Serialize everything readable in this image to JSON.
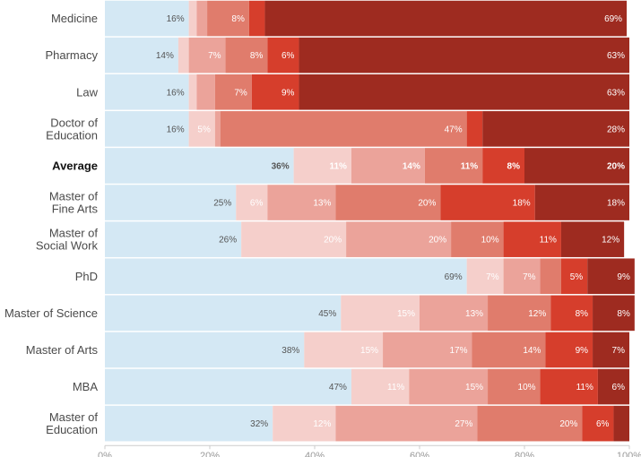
{
  "chart_data": {
    "type": "bar",
    "orientation": "horizontal",
    "stacked": true,
    "title": "",
    "xlabel": "",
    "ylabel": "",
    "xlim": [
      0,
      100
    ],
    "x_ticks": [
      "0%",
      "20%",
      "40%",
      "60%",
      "80%",
      "100%"
    ],
    "grid": false,
    "legend": "none",
    "segment_colors": [
      "#d4e8f4",
      "#f5cfcb",
      "#eba39a",
      "#e07c6c",
      "#d63e2c",
      "#9e2b20"
    ],
    "segment_label_colors": [
      "#555555",
      "#ffffff",
      "#ffffff",
      "#ffffff",
      "#ffffff",
      "#ffffff"
    ],
    "highlight_category": "Average",
    "categories": [
      {
        "label": [
          "Medicine"
        ],
        "values": [
          16,
          1.5,
          2,
          8,
          3,
          69
        ],
        "labels": [
          "16%",
          "",
          "",
          "8%",
          "",
          "69%"
        ]
      },
      {
        "label": [
          "Pharmacy"
        ],
        "values": [
          14,
          2,
          7,
          8,
          6,
          63
        ],
        "labels": [
          "14%",
          "",
          "7%",
          "8%",
          "6%",
          "63%"
        ]
      },
      {
        "label": [
          "Law"
        ],
        "values": [
          16,
          1.5,
          3.5,
          7,
          9,
          63
        ],
        "labels": [
          "16%",
          "",
          "",
          "7%",
          "9%",
          "63%"
        ]
      },
      {
        "label": [
          "Doctor of",
          "Education"
        ],
        "values": [
          16,
          5,
          1,
          47,
          3,
          28
        ],
        "labels": [
          "16%",
          "5%",
          "",
          "47%",
          "",
          "28%"
        ]
      },
      {
        "label": [
          "Average"
        ],
        "values": [
          36,
          11,
          14,
          11,
          8,
          20
        ],
        "labels": [
          "36%",
          "11%",
          "14%",
          "11%",
          "8%",
          "20%"
        ]
      },
      {
        "label": [
          "Master of",
          "Fine Arts"
        ],
        "values": [
          25,
          6,
          13,
          20,
          18,
          18
        ],
        "labels": [
          "25%",
          "6%",
          "13%",
          "20%",
          "18%",
          "18%"
        ]
      },
      {
        "label": [
          "Master of",
          "Social Work"
        ],
        "values": [
          26,
          20,
          20,
          10,
          11,
          12
        ],
        "labels": [
          "26%",
          "20%",
          "20%",
          "10%",
          "11%",
          "12%"
        ]
      },
      {
        "label": [
          "PhD"
        ],
        "values": [
          69,
          7,
          7,
          4,
          5,
          9
        ],
        "labels": [
          "69%",
          "7%",
          "7%",
          "",
          "5%",
          "9%"
        ]
      },
      {
        "label": [
          "Master of Science"
        ],
        "values": [
          45,
          15,
          13,
          12,
          8,
          8
        ],
        "labels": [
          "45%",
          "15%",
          "13%",
          "12%",
          "8%",
          "8%"
        ]
      },
      {
        "label": [
          "Master of Arts"
        ],
        "values": [
          38,
          15,
          17,
          14,
          9,
          7
        ],
        "labels": [
          "38%",
          "15%",
          "17%",
          "14%",
          "9%",
          "7%"
        ]
      },
      {
        "label": [
          "MBA"
        ],
        "values": [
          47,
          11,
          15,
          10,
          11,
          6
        ],
        "labels": [
          "47%",
          "11%",
          "15%",
          "10%",
          "11%",
          "6%"
        ]
      },
      {
        "label": [
          "Master of",
          "Education"
        ],
        "values": [
          32,
          12,
          27,
          20,
          6,
          3
        ],
        "labels": [
          "32%",
          "12%",
          "27%",
          "20%",
          "6%",
          ""
        ]
      }
    ]
  }
}
